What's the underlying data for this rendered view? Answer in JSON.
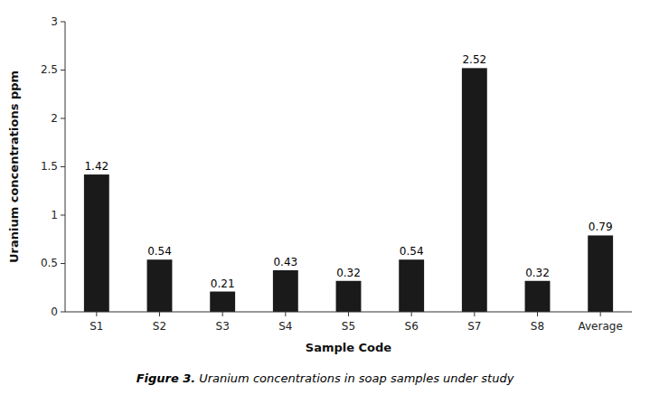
{
  "chart_data": {
    "type": "bar",
    "categories": [
      "S1",
      "S2",
      "S3",
      "S4",
      "S5",
      "S6",
      "S7",
      "S8",
      "Average"
    ],
    "values": [
      1.42,
      0.54,
      0.21,
      0.43,
      0.32,
      0.54,
      2.52,
      0.32,
      0.79
    ],
    "color": "#1a1a1a",
    "xlabel": "Sample Code",
    "ylabel": "Uranium concentrations ppm",
    "ylim": [
      0,
      3.0
    ],
    "yticks": [
      0,
      0.5,
      1,
      1.5,
      2,
      2.5,
      3
    ],
    "annotations": [
      "Figure 3.",
      "Uranium concentrations in soap samples under study"
    ],
    "data_labels": true,
    "grid": false
  }
}
